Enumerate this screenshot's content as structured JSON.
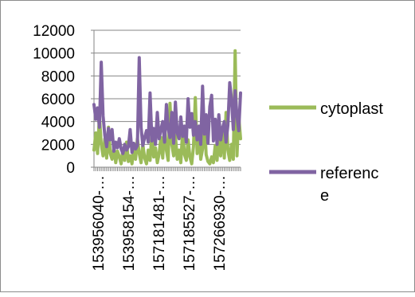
{
  "chart_data": {
    "type": "line",
    "title": "",
    "xlabel": "",
    "ylabel": "",
    "ylim": [
      0,
      12000
    ],
    "yticks": [
      0,
      2000,
      4000,
      6000,
      8000,
      10000,
      12000
    ],
    "ytick_labels": [
      "0",
      "2000",
      "4000",
      "6000",
      "8000",
      "10000",
      "12000"
    ],
    "xtick_labels": [
      "153956040-…",
      "153958154-…",
      "157181481-…",
      "157185527-…",
      "157266930-…"
    ],
    "grid": "horizontal",
    "legend_position": "right",
    "series": [
      {
        "name": "cytoplast",
        "color": "#9bbb59",
        "values": [
          1500,
          3000,
          1200,
          4500,
          2000,
          1000,
          2500,
          800,
          3500,
          1200,
          700,
          1800,
          400,
          1400,
          900,
          300,
          1600,
          600,
          2200,
          500,
          1000,
          300,
          1800,
          700,
          2500,
          1200,
          400,
          2000,
          800,
          300,
          1500,
          600,
          3000,
          900,
          1700,
          400,
          1200,
          2600,
          800,
          3800,
          1500,
          600,
          5600,
          2000,
          1000,
          2800,
          700,
          1500,
          400,
          3200,
          1100,
          600,
          2400,
          900,
          300,
          1800,
          6100,
          1200,
          3500,
          700,
          1600,
          4200,
          1100,
          500,
          300,
          900,
          400,
          1900,
          600,
          2800,
          1000,
          3500,
          800,
          4800,
          1500,
          600,
          2000,
          700,
          10200,
          1000,
          4500,
          2500
        ]
      },
      {
        "name": "reference",
        "color": "#8064a2",
        "values": [
          5500,
          4200,
          5200,
          3500,
          9200,
          4500,
          2800,
          1800,
          3400,
          2400,
          3300,
          1400,
          2200,
          1700,
          2500,
          1600,
          1200,
          2000,
          1500,
          1800,
          3300,
          1300,
          2100,
          1600,
          1900,
          9600,
          3500,
          1900,
          2600,
          3200,
          2200,
          6500,
          2300,
          3400,
          2000,
          4800,
          2500,
          3300,
          4000,
          2200,
          5500,
          3400,
          2600,
          4800,
          2100,
          5700,
          3000,
          2500,
          4400,
          2700,
          3600,
          2200,
          6000,
          3500,
          4700,
          2800,
          4000,
          2400,
          3600,
          2000,
          7100,
          2900,
          4600,
          2100,
          5300,
          6300,
          2300,
          4200,
          2000,
          4600,
          2400,
          3400,
          4000,
          2200,
          3700,
          7400,
          6000,
          3300,
          6700,
          4500,
          3200,
          6500
        ]
      }
    ]
  }
}
